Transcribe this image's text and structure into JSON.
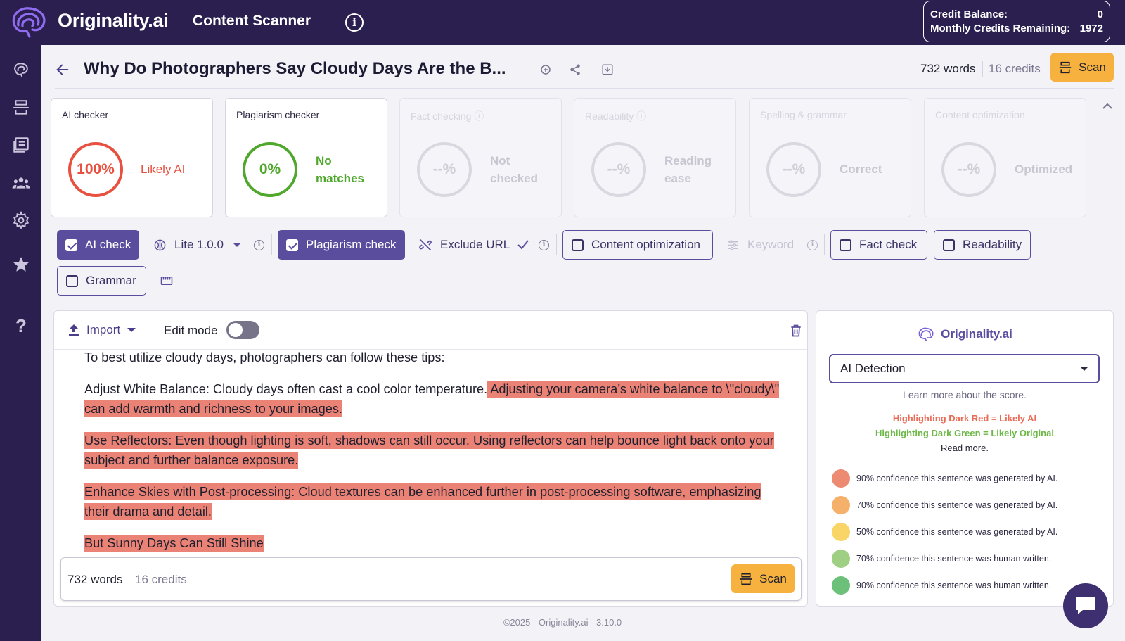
{
  "topbar": {
    "brand": "Originality.ai",
    "app_title": "Content Scanner",
    "info_glyph": "i",
    "credit_balance_label": "Credit Balance:",
    "credit_balance_value": "0",
    "monthly_label": "Monthly Credits Remaining:",
    "monthly_value": "1972"
  },
  "sidebar": {
    "icons": [
      "brain-icon",
      "scanner-icon",
      "documents-icon",
      "team-icon",
      "gear-icon",
      "star-icon",
      "help-icon"
    ],
    "help_glyph": "?"
  },
  "header": {
    "title": "Why Do Photographers Say Cloudy Days Are the B...",
    "words": "732 words",
    "credits": "16 credits",
    "scan_label": "Scan"
  },
  "cards": [
    {
      "title": "AI checker",
      "value": "100%",
      "status": "Likely AI",
      "color": "#e8503f"
    },
    {
      "title": "Plagiarism checker",
      "value": "0%",
      "status_line1": "No",
      "status_line2": "matches",
      "color": "#4fa82c"
    },
    {
      "title": "Fact checking",
      "value": "--%",
      "status_line1": "Not",
      "status_line2": "checked"
    },
    {
      "title": "Readability",
      "value": "--%",
      "status_line1": "Reading",
      "status_line2": "ease"
    },
    {
      "title": "Spelling & grammar",
      "value": "--%",
      "status": "Correct"
    },
    {
      "title": "Content optimization",
      "value": "--%",
      "status": "Optimized"
    }
  ],
  "options": {
    "ai_check": "AI check",
    "model": "Lite 1.0.0",
    "plagiarism_check": "Plagiarism check",
    "exclude_url": "Exclude URL",
    "content_optimization": "Content optimization",
    "keyword": "Keyword",
    "fact_check": "Fact check",
    "readability": "Readability",
    "grammar": "Grammar"
  },
  "editor": {
    "import_label": "Import",
    "edit_mode_label": "Edit mode",
    "p1": "To best utilize cloudy days, photographers can follow these tips:",
    "p2_plain": "Adjust White Balance: Cloudy days often cast a cool color temperature.",
    "p2_hl": " Adjusting your camera’s white balance to \\\"cloudy\\\" can add warmth and richness to your images.",
    "p3_hl": "Use Reflectors: Even though lighting is soft, shadows can still occur.  Using reflectors can help bounce light back onto your subject and further balance exposure.",
    "p4_hl": "Enhance Skies with Post-processing: Cloud textures can be enhanced further in post-processing software, emphasizing their drama and detail.",
    "p5_hl": "But Sunny Days Can Still Shine",
    "footer_words": "732 words",
    "footer_credits": "16 credits",
    "scan_label": "Scan"
  },
  "panel": {
    "brand": "Originality.ai",
    "select_value": "AI Detection",
    "learn_more": "Learn more about the score.",
    "legend_red": "Highlighting Dark Red = Likely AI",
    "legend_green": "Highlighting Dark Green = Likely Original",
    "read_more": "Read more.",
    "legend": [
      {
        "color": "#ec8a72",
        "text": "90% confidence this sentence was generated by AI."
      },
      {
        "color": "#f5b06a",
        "text": "70% confidence this sentence was generated by AI."
      },
      {
        "color": "#f9d568",
        "text": "50% confidence this sentence was generated by AI."
      },
      {
        "color": "#9fcf83",
        "text": "70% confidence this sentence was human written."
      },
      {
        "color": "#6cc07a",
        "text": "90% confidence this sentence was human written."
      }
    ]
  },
  "footer": {
    "copyright": "©2025 - Originality.ai - 3.10.0"
  }
}
